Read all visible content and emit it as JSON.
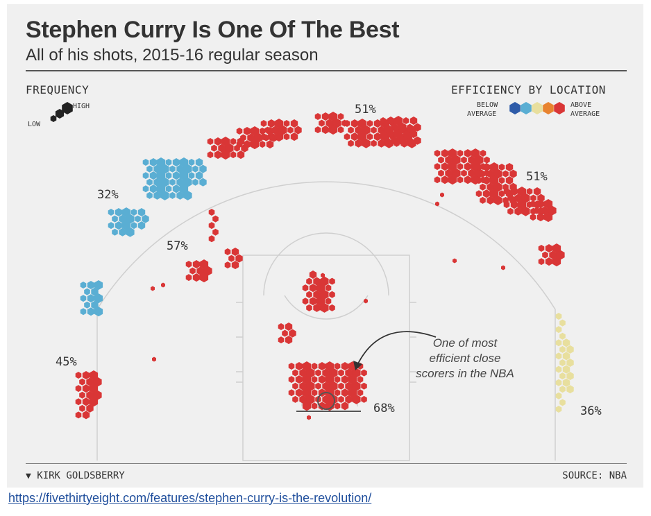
{
  "chart_data": {
    "type": "hexbin-shot-chart",
    "title": "Stephen Curry Is One Of The Best",
    "subtitle": "All of his shots, 2015-16 regular season",
    "legend": {
      "frequency_label": "FREQUENCY",
      "frequency_low": "LOW",
      "frequency_high": "HIGH",
      "efficiency_label": "EFFICIENCY BY LOCATION",
      "efficiency_below_1": "BELOW",
      "efficiency_below_2": "AVERAGE",
      "efficiency_above_1": "ABOVE",
      "efficiency_above_2": "AVERAGE",
      "efficiency_scale_colors": [
        "#2e5ba8",
        "#5aaed3",
        "#e8df9e",
        "#e8832f",
        "#d93636"
      ]
    },
    "zones": [
      {
        "name": "top",
        "pct": "51%",
        "efficiency": "above"
      },
      {
        "name": "right wing three",
        "pct": "51%",
        "efficiency": "above"
      },
      {
        "name": "left wing three",
        "pct": "32%",
        "efficiency": "below"
      },
      {
        "name": "left midrange",
        "pct": "57%",
        "efficiency": "above"
      },
      {
        "name": "left corner three",
        "pct": "45%",
        "efficiency": "above"
      },
      {
        "name": "restricted area",
        "pct": "68%",
        "efficiency": "above"
      },
      {
        "name": "right corner three",
        "pct": "36%",
        "efficiency": "average"
      }
    ],
    "annotation": [
      "One of most",
      "efficient close",
      "scorers in the NBA"
    ],
    "colors": {
      "above": "#d93636",
      "below": "#5aaed3",
      "average": "#e8df9e"
    }
  },
  "footer": {
    "author": "KIRK GOLDSBERRY",
    "source": "SOURCE: NBA"
  },
  "link_text": "https://fivethirtyeight.com/features/stephen-curry-is-the-revolution/"
}
